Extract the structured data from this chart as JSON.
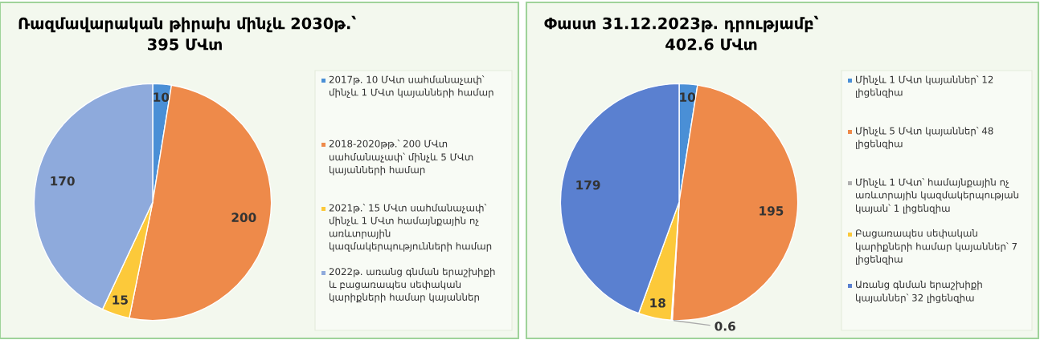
{
  "chart_data": [
    {
      "type": "pie",
      "title": "Ռազմավարական թիրախ մինչև 2030թ.՝",
      "subtitle": "395 ՄՎտ",
      "data_labels": true,
      "legend": "right",
      "categories": [
        "2017թ. 10 ՄՎտ սահմանաչափ՝ մինչև 1 ՄՎտ կայանների համար",
        "2018-2020թթ.՝ 200 ՄՎտ սահմանաչափ՝ մինչև 5 ՄՎտ կայանների համար",
        "2021թ.՝ 15 ՄՎտ սահմանաչափ՝ մինչև 1 ՄՎտ համայնքային ոչ առևտրային կազմակերպությունների համար",
        "2022թ. առանց գնման երաշխիքի և բացառապես սեփական կարիքների համար կայաններ"
      ],
      "values": [
        10,
        200,
        15,
        170
      ],
      "colors": [
        "#4a8fd6",
        "#ee8a4a",
        "#fcc93a",
        "#8eaadc"
      ]
    },
    {
      "type": "pie",
      "title": "Փաստ 31.12.2023թ. դրությամբ՝",
      "subtitle": "402.6 ՄՎտ",
      "data_labels": true,
      "legend": "right",
      "categories": [
        "Մինչև 1 ՄՎտ կայաններ՝ 12 լիցենզիա",
        "Մինչև 5 ՄՎտ կայաններ՝ 48 լիցենզիա",
        "Մինչև 1 ՄՎտ՝ համայնքային ոչ առևտրային կազմակերպության կայան՝ 1 լիցենզիա",
        "Բացառապես սեփական կարիքների համար կայաններ՝ 7 լիցենզիա",
        "Առանց գնման երաշխիքի կայաններ՝ 32 լիցենզիա"
      ],
      "values": [
        10,
        195,
        0.6,
        18,
        179
      ],
      "colors": [
        "#4a8fd6",
        "#ee8a4a",
        "#b0b0b0",
        "#fcc93a",
        "#5a80d0"
      ]
    }
  ]
}
